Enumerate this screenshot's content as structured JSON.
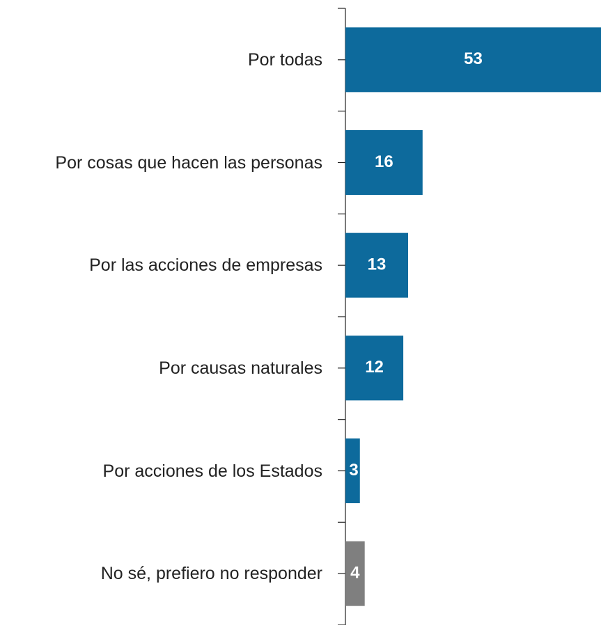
{
  "chart_data": {
    "type": "bar",
    "orientation": "horizontal",
    "categories": [
      "Por todas",
      "Por cosas que hacen las personas",
      "Por las acciones de empresas",
      "Por causas naturales",
      "Por acciones de los Estados",
      "No sé, prefiero no responder"
    ],
    "values": [
      53,
      16,
      13,
      12,
      3,
      4
    ],
    "colors": [
      "#0d6a9c",
      "#0d6a9c",
      "#0d6a9c",
      "#0d6a9c",
      "#0d6a9c",
      "#7f7f7f"
    ],
    "xlim": [
      0,
      53
    ]
  }
}
